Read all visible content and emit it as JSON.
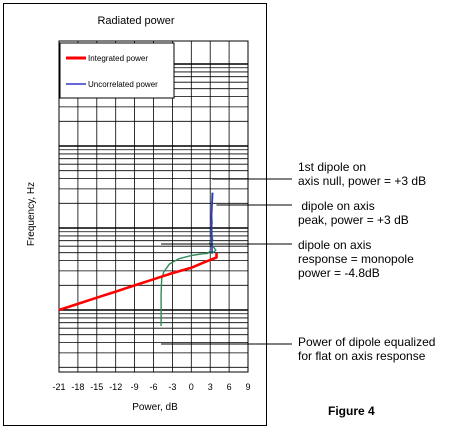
{
  "chart_data": {
    "type": "line",
    "title": "Radiated power",
    "xlabel": "Power, dB",
    "ylabel": "Frequency, Hz",
    "xlim": [
      -21,
      9
    ],
    "x_ticks": [
      "-21",
      "-18",
      "-15",
      "-12",
      "-9",
      "-6",
      "-3",
      "0",
      "3",
      "6",
      "9"
    ],
    "y_scale": "log",
    "grid": true,
    "legend": "top-left",
    "series": [
      {
        "name": "Integrated power",
        "color": "#ff0000",
        "points": [
          [
            -21,
            0.0
          ],
          [
            -18,
            0.075
          ],
          [
            -15,
            0.15
          ],
          [
            -12,
            0.225
          ],
          [
            -9,
            0.3
          ],
          [
            -6,
            0.375
          ],
          [
            -5,
            0.4
          ],
          [
            -3,
            0.45
          ],
          [
            0,
            0.515
          ],
          [
            2,
            0.58
          ],
          [
            3.3,
            0.62
          ],
          [
            4,
            0.64
          ],
          [
            4,
            0.695
          ]
        ]
      },
      {
        "name": "Uncorrelated power",
        "color": "#3333cc",
        "points": [
          [
            3.3,
            0.695
          ],
          [
            3.2,
            1.14
          ],
          [
            3.4,
            1.43
          ]
        ]
      },
      {
        "name": "",
        "color": "#2e8b57",
        "points": [
          [
            -4.8,
            -0.195
          ],
          [
            -4.8,
            0.2
          ],
          [
            -4.7,
            0.38
          ],
          [
            -4.4,
            0.46
          ],
          [
            -3.5,
            0.56
          ],
          [
            -2,
            0.625
          ],
          [
            0,
            0.665
          ],
          [
            1.8,
            0.685
          ],
          [
            2.6,
            0.69
          ],
          [
            3.0,
            0.72
          ],
          [
            3.3,
            0.69
          ],
          [
            3.9,
            0.73
          ],
          [
            3.3,
            0.785
          ],
          [
            2.9,
            0.82
          ],
          [
            3.4,
            0.86
          ],
          [
            3.1,
            0.96
          ],
          [
            3.3,
            1.06
          ],
          [
            3.2,
            1.2
          ],
          [
            3.3,
            1.43
          ]
        ]
      }
    ],
    "annotations": [
      {
        "text": "1st dipole on\naxis null, power = +3 dB",
        "x": 3.3,
        "y": 0.695
      },
      {
        "text": " dipole on axis\npeak, power = +3 dB",
        "x": 4,
        "y": 0.64
      },
      {
        "text": "dipole on axis\nresponse = monopole\npower = -4.8dB",
        "x": -4.8,
        "y": 0.4
      },
      {
        "text": "Power of dipole equalized\nfor flat on axis response",
        "x": -4.8,
        "y": -0.06
      }
    ]
  },
  "figure_label": "Figure 4"
}
